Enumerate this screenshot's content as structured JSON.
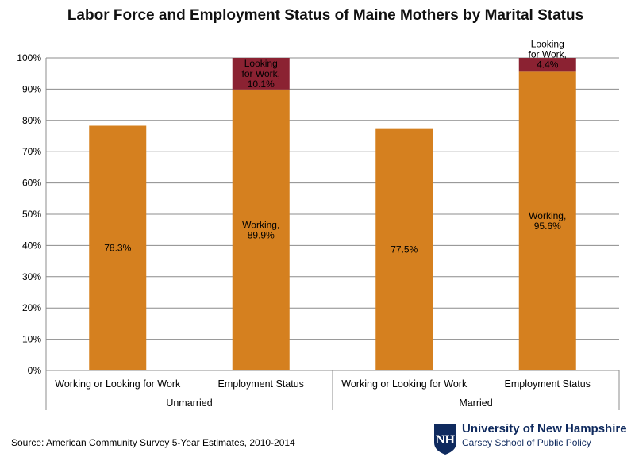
{
  "chart_data": {
    "type": "bar",
    "title": "Labor Force and Employment Status of Maine Mothers by Marital Status",
    "ylim": [
      0,
      100
    ],
    "yticks": [
      "0%",
      "10%",
      "20%",
      "30%",
      "40%",
      "50%",
      "60%",
      "70%",
      "80%",
      "90%",
      "100%"
    ],
    "groups": [
      {
        "name": "Unmarried",
        "bars": [
          {
            "category": "Working or Looking for Work",
            "segments": [
              {
                "value": 78.3,
                "label": "78.3%",
                "color": "#d5801f"
              }
            ]
          },
          {
            "category": "Employment Status",
            "segments": [
              {
                "value": 89.9,
                "label": "Working,\n89.9%",
                "color": "#d5801f"
              },
              {
                "value": 10.1,
                "label": "Looking\nfor Work,\n10.1%",
                "color": "#8b2232"
              }
            ]
          }
        ]
      },
      {
        "name": "Married",
        "bars": [
          {
            "category": "Working or Looking for Work",
            "segments": [
              {
                "value": 77.5,
                "label": "77.5%",
                "color": "#d5801f"
              }
            ]
          },
          {
            "category": "Employment Status",
            "segments": [
              {
                "value": 95.6,
                "label": "Working,\n95.6%",
                "color": "#d5801f"
              },
              {
                "value": 4.4,
                "label": "Looking\nfor Work,\n4.4%",
                "color": "#8b2232"
              }
            ]
          }
        ]
      }
    ],
    "grid": true
  },
  "source": "Source: American Community Survey 5-Year Estimates, 2010-2014",
  "logo": {
    "name": "University of New Hampshire",
    "school": "Carsey School of Public Policy",
    "color": "#0f2a5e"
  }
}
